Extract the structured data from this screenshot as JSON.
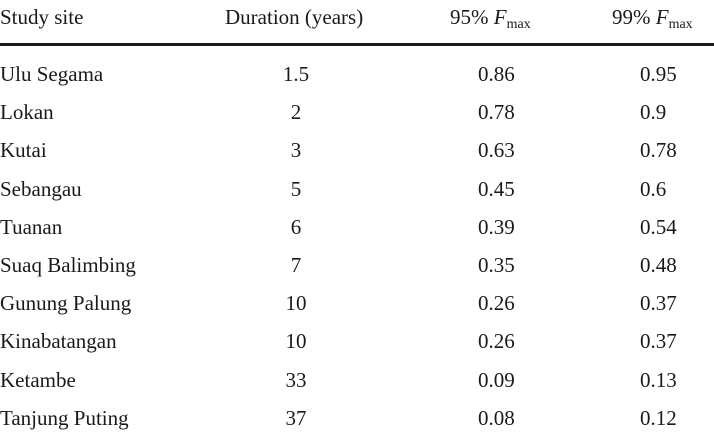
{
  "table": {
    "headers": {
      "site": "Study site",
      "duration": "Duration (years)",
      "f95_prefix": "95% ",
      "f99_prefix": "99% ",
      "f_symbol": "F",
      "f_subscript": "max"
    },
    "rows": [
      {
        "site": "Ulu Segama",
        "duration": "1.5",
        "f95": "0.86",
        "f99": "0.95"
      },
      {
        "site": "Lokan",
        "duration": "2",
        "f95": "0.78",
        "f99": "0.9"
      },
      {
        "site": "Kutai",
        "duration": "3",
        "f95": "0.63",
        "f99": "0.78"
      },
      {
        "site": "Sebangau",
        "duration": "5",
        "f95": "0.45",
        "f99": "0.6"
      },
      {
        "site": "Tuanan",
        "duration": "6",
        "f95": "0.39",
        "f99": "0.54"
      },
      {
        "site": "Suaq Balimbing",
        "duration": "7",
        "f95": "0.35",
        "f99": "0.48"
      },
      {
        "site": "Gunung Palung",
        "duration": "10",
        "f95": "0.26",
        "f99": "0.37"
      },
      {
        "site": "Kinabatangan",
        "duration": "10",
        "f95": "0.26",
        "f99": "0.37"
      },
      {
        "site": "Ketambe",
        "duration": "33",
        "f95": "0.09",
        "f99": "0.13"
      },
      {
        "site": "Tanjung Puting",
        "duration": "37",
        "f95": "0.08",
        "f99": "0.12"
      }
    ]
  }
}
